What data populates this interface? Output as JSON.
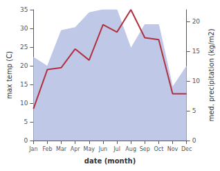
{
  "chart_data": {
    "type": "line",
    "categories": [
      "Jan",
      "Feb",
      "Mar",
      "Apr",
      "May",
      "Jun",
      "Jul",
      "Aug",
      "Sep",
      "Oct",
      "Nov",
      "Dec"
    ],
    "xlabel": "date (month)",
    "ylabel": "max temp (C)",
    "y2label": "med. precipitation (kg/m2)",
    "ylim": [
      0,
      35
    ],
    "yticks": [
      0,
      5,
      10,
      15,
      20,
      25,
      30,
      35
    ],
    "y2lim": [
      0,
      22
    ],
    "y2ticks": [
      0,
      5,
      10,
      15,
      20
    ],
    "grid": false,
    "series": [
      {
        "type": "area",
        "color": "#c0c8e8",
        "axis": "y2",
        "values": [
          14.0,
          12.5,
          18.5,
          19.0,
          21.5,
          22.0,
          22.0,
          15.5,
          19.5,
          19.5,
          9.0,
          12.5
        ]
      },
      {
        "type": "line",
        "color": "#b03040",
        "axis": "y",
        "values": [
          8.5,
          19.0,
          19.5,
          24.5,
          21.5,
          31.0,
          29.0,
          35.0,
          27.5,
          27.0,
          12.5,
          12.5
        ]
      }
    ]
  }
}
